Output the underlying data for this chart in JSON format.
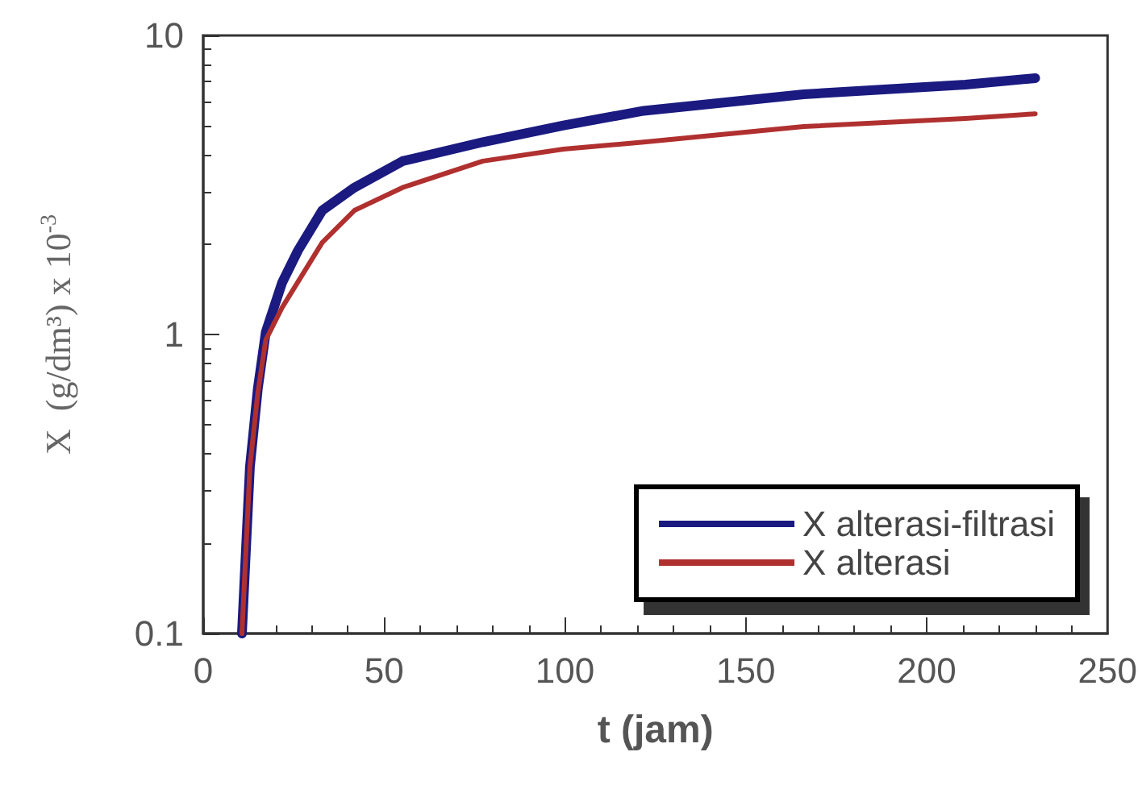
{
  "chart_data": {
    "type": "line",
    "xlabel": "t (jam)",
    "ylabel": "X  (g/dm³) x 10$^{-3}$",
    "series": [
      {
        "name": "X alterasi-filtrasi",
        "color": "#1a1a80",
        "x": [
          10.7,
          12.9,
          15.1,
          17.3,
          21.8,
          26.2,
          32.9,
          41.8,
          55.1,
          77.3,
          99.6,
          121.8,
          166,
          210.7,
          230
        ],
        "values": [
          0.1,
          0.36,
          0.66,
          1.02,
          1.49,
          1.91,
          2.6,
          3.1,
          3.8,
          4.4,
          5.0,
          5.6,
          6.36,
          6.85,
          7.2
        ]
      },
      {
        "name": "X alterasi",
        "color": "#b03030",
        "x": [
          10.7,
          12.9,
          15.1,
          17.3,
          21.8,
          32.9,
          41.8,
          55.1,
          77.3,
          99.6,
          121.8,
          166,
          210.7,
          230
        ],
        "values": [
          0.1,
          0.36,
          0.64,
          0.96,
          1.23,
          2.03,
          2.6,
          3.1,
          3.8,
          4.17,
          4.4,
          4.96,
          5.28,
          5.47
        ]
      }
    ],
    "xlim": [
      0,
      250
    ],
    "xticks": [
      0,
      50,
      100,
      150,
      200,
      250
    ],
    "ylim": [
      0.1,
      10
    ],
    "yticks": [
      0.1,
      1,
      10
    ],
    "log": "y",
    "grid": false,
    "legend": "bottom right",
    "marker": "none",
    "line_style": "solid"
  }
}
